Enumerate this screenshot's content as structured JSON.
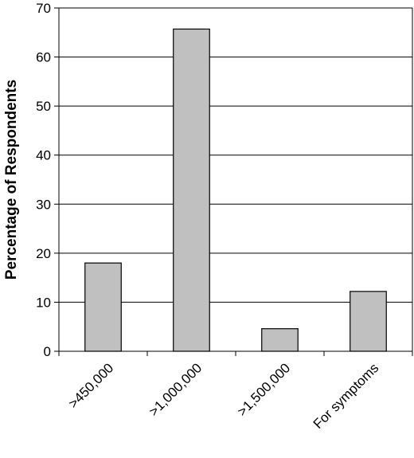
{
  "chart_data": {
    "type": "bar",
    "title": "",
    "xlabel": "",
    "ylabel": "Percentage of Respondents",
    "categories": [
      ">450,000",
      ">1,000,000",
      ">1,500,000",
      "For symptoms"
    ],
    "values": [
      18,
      65.7,
      4.6,
      12.2
    ],
    "ylim": [
      0,
      70
    ],
    "yticks": [
      0,
      10,
      20,
      30,
      40,
      50,
      60,
      70
    ],
    "grid": true,
    "bar_color": "#c0c0c0",
    "bar_edge_color": "#000000",
    "legend": "none"
  }
}
